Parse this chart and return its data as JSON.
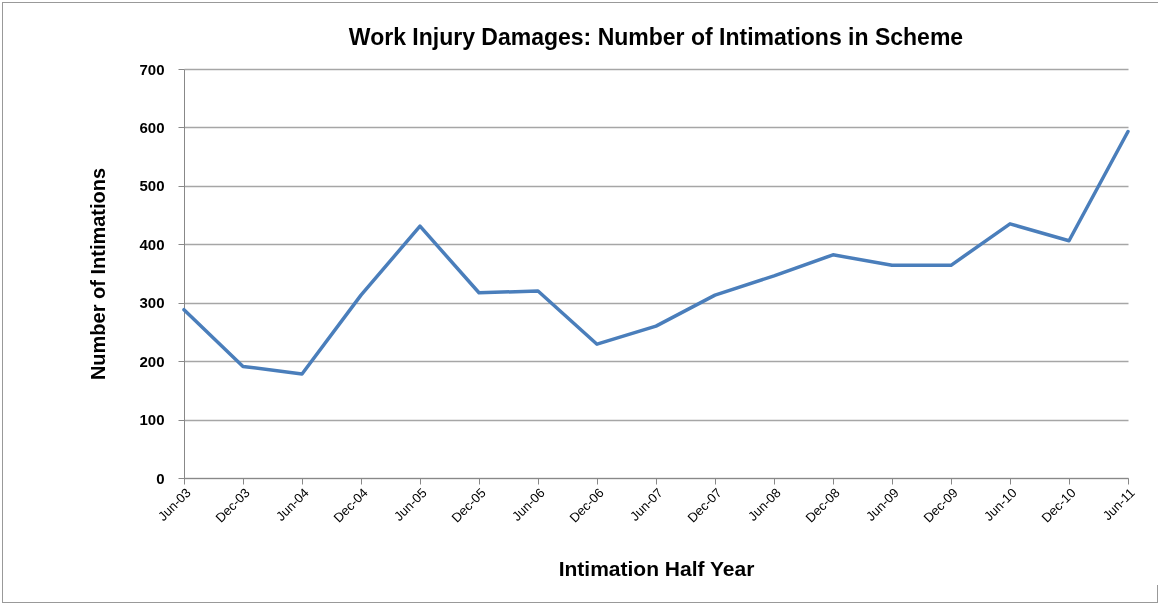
{
  "chart_data": {
    "type": "line",
    "title": "Work Injury Damages: Number of Intimations in Scheme",
    "xlabel": "Intimation  Half Year",
    "ylabel": "Number of Intimations",
    "categories": [
      "Jun-03",
      "Dec-03",
      "Jun-04",
      "Dec-04",
      "Jun-05",
      "Dec-05",
      "Jun-06",
      "Dec-06",
      "Jun-07",
      "Dec-07",
      "Jun-08",
      "Dec-08",
      "Jun-09",
      "Dec-09",
      "Jun-10",
      "Dec-10",
      "Jun-11"
    ],
    "series": [
      {
        "color": "#4a7ebb",
        "values": [
          288,
          191,
          178,
          313,
          431,
          317,
          320,
          229,
          260,
          313,
          346,
          382,
          364,
          364,
          435,
          406,
          593
        ]
      }
    ],
    "ylim": [
      0,
      700
    ],
    "yticks": [
      0,
      100,
      200,
      300,
      400,
      500,
      600,
      700
    ],
    "grid": "y",
    "marker": "none",
    "line_style": "solid"
  }
}
